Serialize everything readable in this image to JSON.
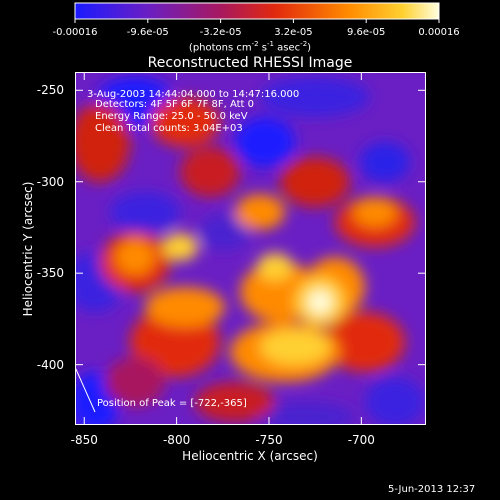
{
  "colorbar": {
    "ticks": [
      "-0.00016",
      "-9.6e-05",
      "-3.2e-05",
      "3.2e-05",
      "9.6e-05",
      "0.00016"
    ],
    "tick_values": [
      -0.00016,
      -9.6e-05,
      -3.2e-05,
      3.2e-05,
      9.6e-05,
      0.00016
    ],
    "range": [
      -0.00016,
      0.00016
    ],
    "unit_prefix": "(photons cm",
    "unit_exp1": "-2",
    "unit_mid": " s",
    "unit_exp2": "-1",
    "unit_mid2": " asec",
    "unit_exp3": "-2",
    "unit_suffix": ")",
    "colors": [
      "#1a1aff",
      "#6a1fc4",
      "#a8185f",
      "#e1290e",
      "#ff8a00",
      "#ffd030",
      "#ffffe0"
    ]
  },
  "chart_data": {
    "type": "heatmap",
    "title": "Reconstructed RHESSI Image",
    "xlabel": "Heliocentric X (arcsec)",
    "ylabel": "Heliocentric Y (arcsec)",
    "x_ticks": [
      "-850",
      "-800",
      "-750",
      "-700"
    ],
    "x_tick_values": [
      -850,
      -800,
      -750,
      -700
    ],
    "y_ticks": [
      "-250",
      "-300",
      "-350",
      "-400"
    ],
    "y_tick_values": [
      -250,
      -300,
      -350,
      -400
    ],
    "xlim": [
      -855,
      -665
    ],
    "ylim": [
      -433,
      -240
    ],
    "peak": {
      "x": -722,
      "y": -365
    },
    "annotations": {
      "time": "3-Aug-2003 14:44:04.000 to 14:47:16.000",
      "detectors": "Detectors: 4F 5F 6F 7F 8F, Att 0",
      "energy": "Energy Range: 25.0 - 50.0 keV",
      "clean": "Clean     Total counts: 3.04E+03",
      "peak_text": "Position of Peak = [-722,-365]"
    }
  },
  "timestamp": "5-Jun-2013 12:37"
}
